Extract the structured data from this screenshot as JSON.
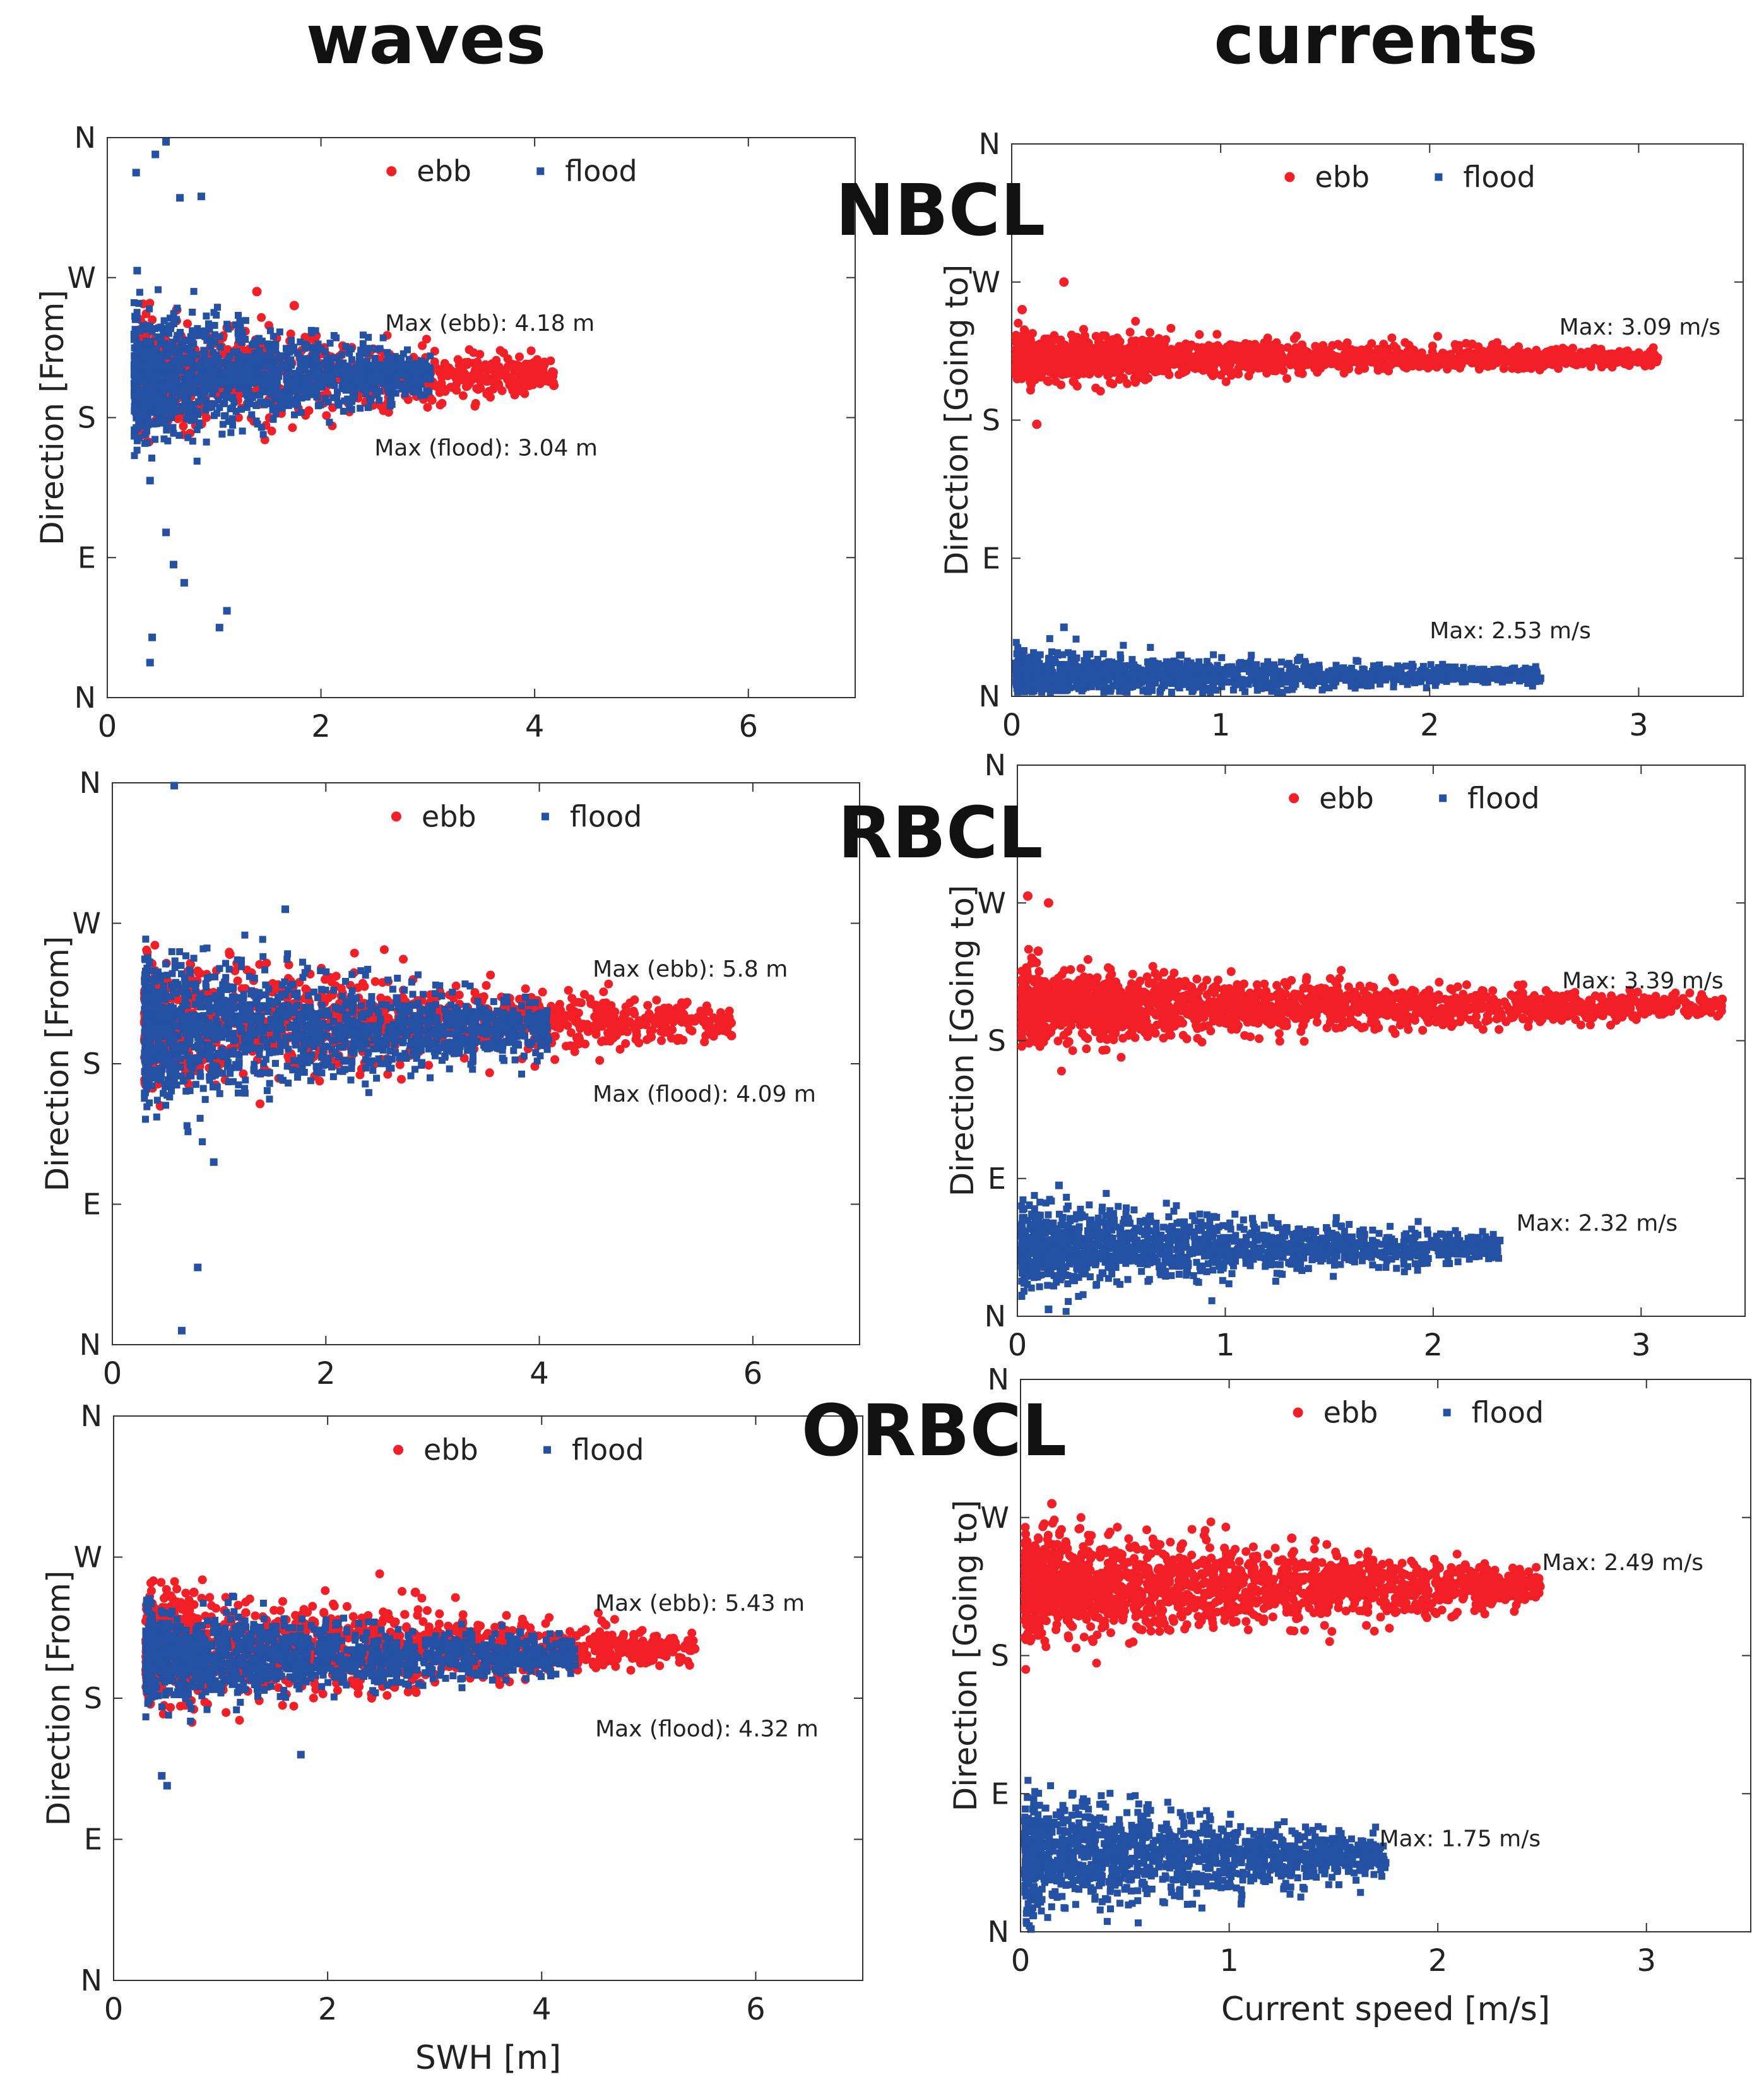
{
  "figure": {
    "col_titles": [
      "waves",
      "currents"
    ],
    "site_labels": [
      "NBCL",
      "RBCL",
      "ORBCL"
    ]
  },
  "colors": {
    "ebb": "#f21f26",
    "flood": "#2451a4"
  },
  "chart_data": [
    {
      "id": "waves-nbcl",
      "type": "scatter",
      "title": "",
      "xlabel": "",
      "ylabel": "Direction [From]",
      "xlim": [
        0,
        7
      ],
      "xticks": [
        "0",
        "2",
        "4",
        "6"
      ],
      "xtick_values": [
        0,
        2,
        4,
        6
      ],
      "yticks": [
        "N",
        "E",
        "S",
        "W",
        "N"
      ],
      "ylim": [
        0,
        4
      ],
      "legend": [
        "ebb",
        "flood"
      ],
      "series": [
        {
          "name": "ebb",
          "marker": "circle",
          "x_range": [
            0.3,
            4.18
          ],
          "x_max": 4.18,
          "y_center": 2.3,
          "spread": 0.28,
          "n": 900,
          "outliers": [
            [
              1.4,
              2.9
            ],
            [
              1.75,
              2.8
            ],
            [
              0.65,
              2.77
            ],
            [
              1.15,
              2.65
            ],
            [
              3.95,
              2.38
            ],
            [
              4.18,
              2.23
            ]
          ]
        },
        {
          "name": "flood",
          "marker": "square",
          "x_range": [
            0.25,
            3.04
          ],
          "x_max": 3.04,
          "y_center": 2.3,
          "spread": 0.34,
          "n": 1300,
          "outliers": [
            [
              0.55,
              3.97
            ],
            [
              0.45,
              3.88
            ],
            [
              0.27,
              3.75
            ],
            [
              0.68,
              3.57
            ],
            [
              0.88,
              3.58
            ],
            [
              0.28,
              3.05
            ],
            [
              0.4,
              1.55
            ],
            [
              0.55,
              1.18
            ],
            [
              0.62,
              0.95
            ],
            [
              0.72,
              0.82
            ],
            [
              1.12,
              0.62
            ],
            [
              1.05,
              0.5
            ],
            [
              0.42,
              0.43
            ],
            [
              0.4,
              0.25
            ]
          ]
        }
      ],
      "annotations": [
        {
          "text": "Max (ebb): 4.18 m",
          "x": 2.6,
          "y": 2.62
        },
        {
          "text": "Max (flood): 3.04 m",
          "x": 2.5,
          "y": 1.73
        }
      ]
    },
    {
      "id": "currents-nbcl",
      "type": "scatter",
      "title": "",
      "xlabel": "",
      "ylabel": "Direction [Going to]",
      "xlim": [
        0,
        3.5
      ],
      "xticks": [
        "0",
        "1",
        "2",
        "3"
      ],
      "xtick_values": [
        0,
        1,
        2,
        3
      ],
      "yticks": [
        "N",
        "E",
        "S",
        "W",
        "N"
      ],
      "ylim": [
        0,
        4
      ],
      "legend": [
        "ebb",
        "flood"
      ],
      "series": [
        {
          "name": "ebb",
          "marker": "circle",
          "x_range": [
            0.02,
            3.09
          ],
          "x_max": 3.09,
          "y_center": 2.45,
          "spread": 0.12,
          "n": 1600,
          "outliers": [
            [
              3.09,
              2.45
            ],
            [
              0.12,
              1.97
            ],
            [
              0.05,
              2.8
            ],
            [
              0.25,
              3.0
            ]
          ]
        },
        {
          "name": "flood",
          "marker": "square",
          "x_range": [
            0.02,
            2.53
          ],
          "x_max": 2.53,
          "y_center": 0.15,
          "spread": 0.12,
          "n": 1400,
          "outliers": [
            [
              2.53,
              0.13
            ],
            [
              0.25,
              0.5
            ]
          ]
        }
      ],
      "annotations": [
        {
          "text": "Max: 3.09 m/s",
          "x": 2.62,
          "y": 2.62
        },
        {
          "text": "Max: 2.53 m/s",
          "x": 2.0,
          "y": 0.42
        }
      ]
    },
    {
      "id": "waves-rbcl",
      "type": "scatter",
      "title": "",
      "xlabel": "",
      "ylabel": "Direction [From]",
      "xlim": [
        0,
        7
      ],
      "xticks": [
        "0",
        "2",
        "4",
        "6"
      ],
      "xtick_values": [
        0,
        2,
        4,
        6
      ],
      "yticks": [
        "N",
        "E",
        "S",
        "W",
        "N"
      ],
      "ylim": [
        0,
        4
      ],
      "legend": [
        "ebb",
        "flood"
      ],
      "series": [
        {
          "name": "ebb",
          "marker": "circle",
          "x_range": [
            0.3,
            5.8
          ],
          "x_max": 5.8,
          "y_center": 2.3,
          "spread": 0.3,
          "n": 1200,
          "outliers": [
            [
              5.8,
              2.2
            ],
            [
              1.1,
              2.78
            ],
            [
              0.45,
              1.7
            ]
          ]
        },
        {
          "name": "flood",
          "marker": "square",
          "x_range": [
            0.3,
            4.09
          ],
          "x_max": 4.09,
          "y_center": 2.25,
          "spread": 0.38,
          "n": 1500,
          "outliers": [
            [
              0.58,
              3.98
            ],
            [
              1.62,
              3.1
            ],
            [
              0.8,
              0.55
            ],
            [
              0.65,
              0.1
            ],
            [
              0.95,
              1.3
            ]
          ]
        }
      ],
      "annotations": [
        {
          "text": "Max (ebb): 5.8 m",
          "x": 4.5,
          "y": 2.62
        },
        {
          "text": "Max (flood): 4.09 m",
          "x": 4.5,
          "y": 1.73
        }
      ]
    },
    {
      "id": "currents-rbcl",
      "type": "scatter",
      "title": "",
      "xlabel": "",
      "ylabel": "Direction [Going to]",
      "xlim": [
        0,
        3.5
      ],
      "xticks": [
        "0",
        "1",
        "2",
        "3"
      ],
      "xtick_values": [
        0,
        1,
        2,
        3
      ],
      "yticks": [
        "N",
        "E",
        "S",
        "W",
        "N"
      ],
      "ylim": [
        0,
        4
      ],
      "legend": [
        "ebb",
        "flood"
      ],
      "series": [
        {
          "name": "ebb",
          "marker": "circle",
          "x_range": [
            0.02,
            3.39
          ],
          "x_max": 3.39,
          "y_center": 2.25,
          "spread": 0.18,
          "n": 1800,
          "outliers": [
            [
              3.39,
              2.3
            ],
            [
              0.05,
              3.05
            ],
            [
              0.15,
              3.0
            ],
            [
              0.1,
              2.65
            ]
          ]
        },
        {
          "name": "flood",
          "marker": "square",
          "x_range": [
            0.02,
            2.32
          ],
          "x_max": 2.32,
          "y_center": 0.5,
          "spread": 0.22,
          "n": 1500,
          "outliers": [
            [
              2.32,
              0.55
            ],
            [
              0.15,
              0.05
            ],
            [
              0.2,
              0.95
            ]
          ]
        }
      ],
      "annotations": [
        {
          "text": "Max: 3.39 m/s",
          "x": 2.62,
          "y": 2.38
        },
        {
          "text": "Max: 2.32 m/s",
          "x": 2.4,
          "y": 0.62
        }
      ]
    },
    {
      "id": "waves-orbcl",
      "type": "scatter",
      "title": "",
      "xlabel": "SWH [m]",
      "ylabel": "Direction [From]",
      "xlim": [
        0,
        7
      ],
      "xticks": [
        "0",
        "2",
        "4",
        "6"
      ],
      "xtick_values": [
        0,
        2,
        4,
        6
      ],
      "yticks": [
        "N",
        "E",
        "S",
        "W",
        "N"
      ],
      "ylim": [
        0,
        4
      ],
      "legend": [
        "ebb",
        "flood"
      ],
      "series": [
        {
          "name": "ebb",
          "marker": "circle",
          "x_range": [
            0.3,
            5.43
          ],
          "x_max": 5.43,
          "y_center": 2.35,
          "spread": 0.28,
          "n": 1300,
          "outliers": [
            [
              5.43,
              2.35
            ],
            [
              2.82,
              2.75
            ],
            [
              0.75,
              2.75
            ],
            [
              4.92,
              2.33
            ]
          ]
        },
        {
          "name": "flood",
          "marker": "square",
          "x_range": [
            0.3,
            4.32
          ],
          "x_max": 4.32,
          "y_center": 2.3,
          "spread": 0.25,
          "n": 1400,
          "outliers": [
            [
              0.45,
              1.45
            ],
            [
              0.5,
              1.38
            ],
            [
              1.75,
              1.6
            ]
          ]
        }
      ],
      "annotations": [
        {
          "text": "Max (ebb): 5.43 m",
          "x": 4.5,
          "y": 2.62
        },
        {
          "text": "Max (flood): 4.32 m",
          "x": 4.5,
          "y": 1.73
        }
      ]
    },
    {
      "id": "currents-orbcl",
      "type": "scatter",
      "title": "",
      "xlabel": "Current speed [m/s]",
      "ylabel": "Direction [Going to]",
      "xlim": [
        0,
        3.5
      ],
      "xticks": [
        "0",
        "1",
        "2",
        "3"
      ],
      "xtick_values": [
        0,
        1,
        2,
        3
      ],
      "yticks": [
        "N",
        "E",
        "S",
        "W",
        "N"
      ],
      "ylim": [
        0,
        4
      ],
      "legend": [
        "ebb",
        "flood"
      ],
      "series": [
        {
          "name": "ebb",
          "marker": "circle",
          "x_range": [
            0.02,
            2.49
          ],
          "x_max": 2.49,
          "y_center": 2.5,
          "spread": 0.28,
          "n": 1700,
          "outliers": [
            [
              2.49,
              2.5
            ],
            [
              1.3,
              2.85
            ],
            [
              0.15,
              3.1
            ]
          ]
        },
        {
          "name": "flood",
          "marker": "square",
          "x_range": [
            0.02,
            1.75
          ],
          "x_max": 1.75,
          "y_center": 0.55,
          "spread": 0.3,
          "n": 1500,
          "outliers": [
            [
              1.75,
              0.5
            ],
            [
              0.25,
              1.0
            ],
            [
              0.05,
              0.02
            ]
          ]
        }
      ],
      "annotations": [
        {
          "text": "Max: 2.49 m/s",
          "x": 2.5,
          "y": 2.62
        },
        {
          "text": "Max: 1.75 m/s",
          "x": 1.72,
          "y": 0.62
        }
      ]
    }
  ]
}
